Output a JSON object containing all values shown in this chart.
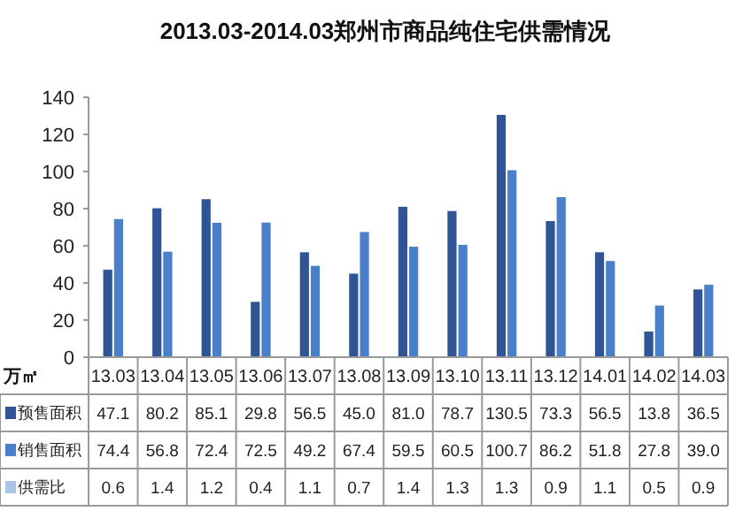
{
  "chart_data": [
    {
      "type": "bar",
      "title": "2013.03-2014.03郑州市商品纯住宅供需情况",
      "ylabel": "万㎡",
      "categories": [
        "13.03",
        "13.04",
        "13.05",
        "13.06",
        "13.07",
        "13.08",
        "13.09",
        "13.10",
        "13.11",
        "13.12",
        "14.01",
        "14.02",
        "14.03"
      ],
      "series": [
        {
          "name": "预售面积",
          "color": "#2f5597",
          "values": [
            47.1,
            80.2,
            85.1,
            29.8,
            56.5,
            45.0,
            81.0,
            78.7,
            130.5,
            73.3,
            56.5,
            13.8,
            36.5
          ],
          "value_labels": [
            "47.1",
            "80.2",
            "85.1",
            "29.8",
            "56.5",
            "45.0",
            "81.0",
            "78.7",
            "130.5",
            "73.3",
            "56.5",
            "13.8",
            "36.5"
          ]
        },
        {
          "name": "销售面积",
          "color": "#4a7fc9",
          "values": [
            74.4,
            56.8,
            72.4,
            72.5,
            49.2,
            67.4,
            59.5,
            60.5,
            100.7,
            86.2,
            51.8,
            27.8,
            39.0
          ],
          "value_labels": [
            "74.4",
            "56.8",
            "72.4",
            "72.5",
            "49.2",
            "67.4",
            "59.5",
            "60.5",
            "100.7",
            "86.2",
            "51.8",
            "27.8",
            "39.0"
          ]
        }
      ],
      "ylim": [
        0,
        140
      ],
      "yticks": [
        0,
        20,
        40,
        60,
        80,
        100,
        120,
        140
      ],
      "legend": "bottom"
    },
    {
      "type": "other",
      "legend": "left",
      "data_labels": true,
      "series": [
        {
          "name": "供需比",
          "color": "#a9c4e8",
          "values": [
            0.6,
            1.4,
            1.2,
            0.4,
            1.1,
            0.7,
            1.4,
            1.3,
            1.3,
            0.9,
            1.1,
            0.5,
            0.9
          ]
        }
      ]
    }
  ]
}
